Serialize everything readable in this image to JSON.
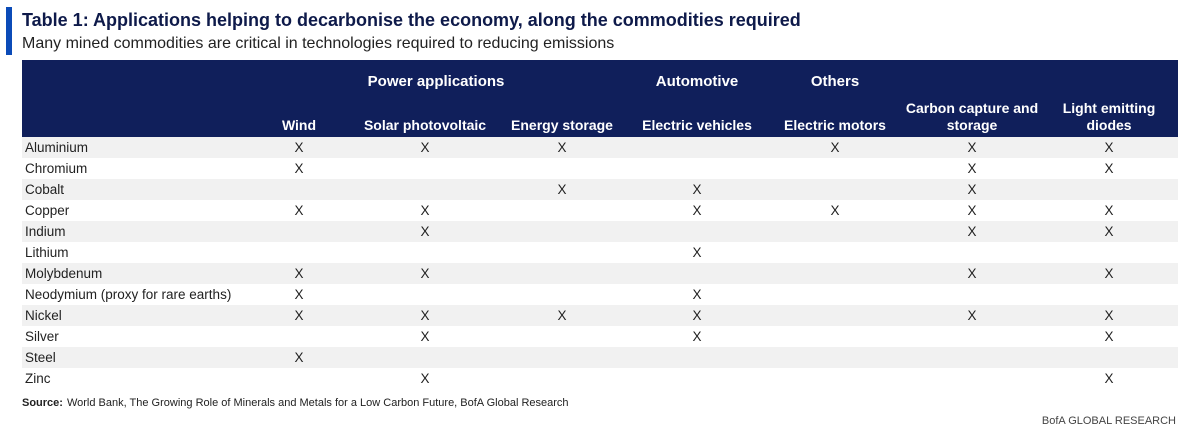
{
  "header": {
    "title": "Table 1: Applications helping to decarbonise the economy, along the commodities required",
    "subtitle": "Many mined commodities are critical in technologies required to reducing emissions"
  },
  "table": {
    "groups": [
      "Power applications",
      "Automotive",
      "Others"
    ],
    "columns": [
      "Wind",
      "Solar photovoltaic",
      "Energy storage",
      "Electric vehicles",
      "Electric motors",
      "Carbon capture and storage",
      "Light emitting diodes"
    ],
    "rows": [
      {
        "name": "Aluminium",
        "cells": [
          "X",
          "X",
          "X",
          "",
          "X",
          "X",
          "X"
        ]
      },
      {
        "name": "Chromium",
        "cells": [
          "X",
          "",
          "",
          "",
          "",
          "X",
          "X"
        ]
      },
      {
        "name": "Cobalt",
        "cells": [
          "",
          "",
          "X",
          "X",
          "",
          "X",
          ""
        ]
      },
      {
        "name": "Copper",
        "cells": [
          "X",
          "X",
          "",
          "X",
          "X",
          "X",
          "X"
        ]
      },
      {
        "name": "Indium",
        "cells": [
          "",
          "X",
          "",
          "",
          "",
          "X",
          "X"
        ]
      },
      {
        "name": "Lithium",
        "cells": [
          "",
          "",
          "",
          "X",
          "",
          "",
          ""
        ]
      },
      {
        "name": "Molybdenum",
        "cells": [
          "X",
          "X",
          "",
          "",
          "",
          "X",
          "X"
        ]
      },
      {
        "name": "Neodymium (proxy for rare earths)",
        "cells": [
          "X",
          "",
          "",
          "X",
          "",
          "",
          ""
        ]
      },
      {
        "name": "Nickel",
        "cells": [
          "X",
          "X",
          "X",
          "X",
          "",
          "X",
          "X"
        ]
      },
      {
        "name": "Silver",
        "cells": [
          "",
          "X",
          "",
          "X",
          "",
          "",
          "X"
        ]
      },
      {
        "name": "Steel",
        "cells": [
          "X",
          "",
          "",
          "",
          "",
          "",
          ""
        ]
      },
      {
        "name": "Zinc",
        "cells": [
          "",
          "X",
          "",
          "",
          "",
          "",
          "X"
        ]
      }
    ]
  },
  "footer": {
    "source_label": "Source:",
    "source_text": "World Bank, The Growing Role of Minerals and Metals for a Low Carbon Future, BofA Global Research",
    "brand": "BofA GLOBAL RESEARCH"
  },
  "colors": {
    "header_bg": "#101f5b",
    "accent_bar": "#0b4bb8",
    "row_stripe": "#f1f1f1"
  }
}
